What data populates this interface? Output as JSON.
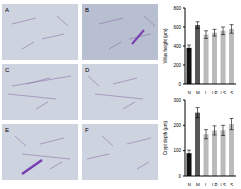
{
  "panels": [
    "A",
    "B",
    "C",
    "D",
    "E",
    "F"
  ],
  "chart_data": [
    {
      "type": "bar",
      "y_label": "Villus height (μm)",
      "categories": [
        "N",
        "M",
        "L",
        "LP",
        "LS",
        "S"
      ],
      "values": [
        380,
        620,
        520,
        540,
        560,
        580
      ],
      "errors": [
        30,
        35,
        40,
        35,
        40,
        45
      ],
      "colors": [
        "#111111",
        "#555555",
        "#bbbbbb",
        "#bbbbbb",
        "#bbbbbb",
        "#bbbbbb"
      ],
      "ylim": [
        0,
        800
      ],
      "yticks": [
        0,
        200,
        400,
        600,
        800
      ],
      "grid": false
    },
    {
      "type": "bar",
      "y_label": "Crypt depth (μm)",
      "categories": [
        "N",
        "M",
        "L",
        "LP",
        "LS",
        "S"
      ],
      "values": [
        90,
        250,
        165,
        180,
        180,
        205
      ],
      "errors": [
        12,
        20,
        18,
        18,
        20,
        22
      ],
      "colors": [
        "#111111",
        "#555555",
        "#bbbbbb",
        "#bbbbbb",
        "#bbbbbb",
        "#bbbbbb"
      ],
      "ylim": [
        0,
        300
      ],
      "yticks": [
        0,
        100,
        200,
        300
      ],
      "grid": false
    }
  ]
}
